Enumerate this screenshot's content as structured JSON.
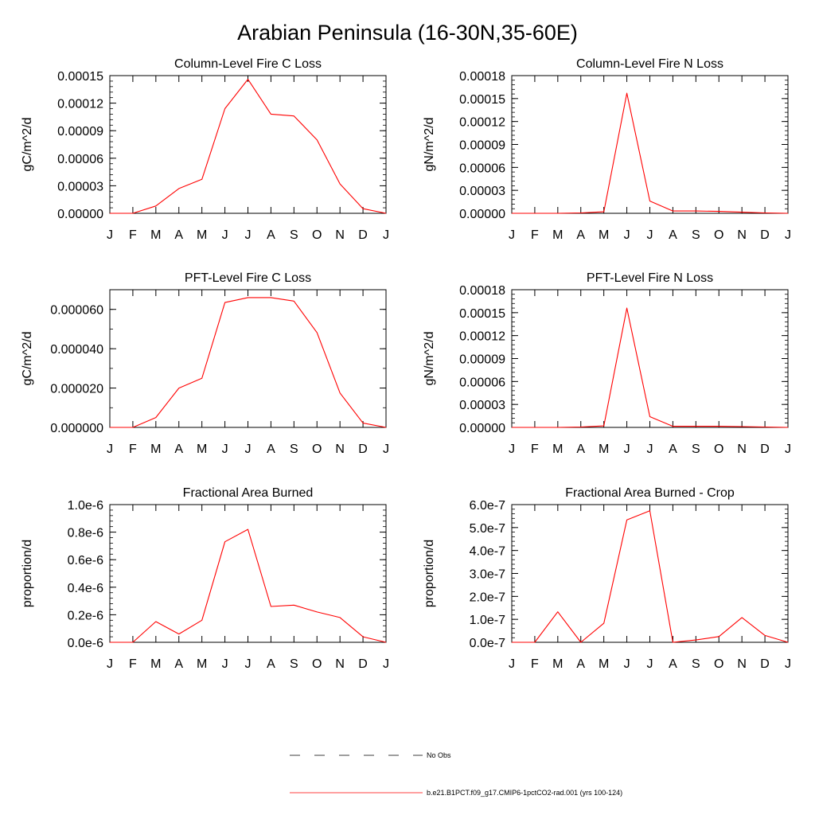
{
  "figure_title": "Arabian Peninsula (16-30N,35-60E)",
  "colors": {
    "model_line": "#ff0000",
    "axes": "#000000",
    "obs_line": "#000000"
  },
  "legend": [
    {
      "label": "No Obs",
      "style": "dashed",
      "color": "#000000"
    },
    {
      "label": "b.e21.B1PCT.f09_g17.CMIP6-1pctCO2-rad.001 (yrs 100-124)",
      "style": "solid",
      "color": "#ff0000"
    }
  ],
  "chart_data": [
    {
      "type": "line",
      "title": "Column-Level Fire C Loss",
      "xlabel": "",
      "ylabel": "gC/m^2/d",
      "categories": [
        "J",
        "F",
        "M",
        "A",
        "M",
        "J",
        "J",
        "A",
        "S",
        "O",
        "N",
        "D",
        "J"
      ],
      "ylim": [
        0,
        0.00015
      ],
      "yticks": [
        "0.00000",
        "0.00003",
        "0.00006",
        "0.00009",
        "0.00012",
        "0.00015"
      ],
      "series": [
        {
          "values": [
            0.0,
            0.0,
            8e-06,
            2.7e-05,
            3.7e-05,
            0.000114,
            0.000146,
            0.000108,
            0.000106,
            8e-05,
            3.2e-05,
            5e-06,
            0.0
          ]
        }
      ]
    },
    {
      "type": "line",
      "title": "Column-Level Fire N Loss",
      "xlabel": "",
      "ylabel": "gN/m^2/d",
      "categories": [
        "J",
        "F",
        "M",
        "A",
        "M",
        "J",
        "J",
        "A",
        "S",
        "O",
        "N",
        "D",
        "J"
      ],
      "ylim": [
        0,
        0.00018
      ],
      "yticks": [
        "0.00000",
        "0.00003",
        "0.00006",
        "0.00009",
        "0.00012",
        "0.00015",
        "0.00018"
      ],
      "series": [
        {
          "values": [
            0.0,
            0.0,
            0.0,
            5e-07,
            2e-06,
            0.000157,
            1.6e-05,
            3e-06,
            3e-06,
            2.5e-06,
            1.5e-06,
            5e-07,
            0.0
          ]
        }
      ]
    },
    {
      "type": "line",
      "title": "PFT-Level Fire C Loss",
      "xlabel": "",
      "ylabel": "gC/m^2/d",
      "categories": [
        "J",
        "F",
        "M",
        "A",
        "M",
        "J",
        "J",
        "A",
        "S",
        "O",
        "N",
        "D",
        "J"
      ],
      "ylim": [
        0,
        7e-05
      ],
      "yticks": [
        "0.000000",
        "0.000020",
        "0.000040",
        "0.000060"
      ],
      "ytick_values": [
        0,
        2e-05,
        4e-05,
        6e-05
      ],
      "series": [
        {
          "values": [
            0.0,
            0.0,
            5e-06,
            2e-05,
            2.5e-05,
            6.35e-05,
            6.6e-05,
            6.6e-05,
            6.42e-05,
            4.82e-05,
            1.75e-05,
            2.2e-06,
            0.0
          ]
        }
      ]
    },
    {
      "type": "line",
      "title": "PFT-Level Fire N Loss",
      "xlabel": "",
      "ylabel": "gN/m^2/d",
      "categories": [
        "J",
        "F",
        "M",
        "A",
        "M",
        "J",
        "J",
        "A",
        "S",
        "O",
        "N",
        "D",
        "J"
      ],
      "ylim": [
        0,
        0.00018
      ],
      "yticks": [
        "0.00000",
        "0.00003",
        "0.00006",
        "0.00009",
        "0.00012",
        "0.00015",
        "0.00018"
      ],
      "series": [
        {
          "values": [
            0.0,
            0.0,
            0.0,
            5e-07,
            2e-06,
            0.000156,
            1.4e-05,
            1.5e-06,
            1.5e-06,
            1.5e-06,
            1e-06,
            5e-07,
            0.0
          ]
        }
      ]
    },
    {
      "type": "line",
      "title": "Fractional Area Burned",
      "xlabel": "",
      "ylabel": "proportion/d",
      "categories": [
        "J",
        "F",
        "M",
        "A",
        "M",
        "J",
        "J",
        "A",
        "S",
        "O",
        "N",
        "D",
        "J"
      ],
      "ylim": [
        0,
        1e-06
      ],
      "yticks": [
        "0.0e-6",
        "0.2e-6",
        "0.4e-6",
        "0.6e-6",
        "0.8e-6",
        "1.0e-6"
      ],
      "series": [
        {
          "values": [
            0.0,
            0.0,
            1.5e-07,
            6e-08,
            1.6e-07,
            7.3e-07,
            8.2e-07,
            2.6e-07,
            2.7e-07,
            2.2e-07,
            1.8e-07,
            4e-08,
            0.0
          ]
        }
      ]
    },
    {
      "type": "line",
      "title": "Fractional Area Burned - Crop",
      "xlabel": "",
      "ylabel": "proportion/d",
      "categories": [
        "J",
        "F",
        "M",
        "A",
        "M",
        "J",
        "J",
        "A",
        "S",
        "O",
        "N",
        "D",
        "J"
      ],
      "ylim": [
        0,
        6e-07
      ],
      "yticks": [
        "0.0e-7",
        "1.0e-7",
        "2.0e-7",
        "3.0e-7",
        "4.0e-7",
        "5.0e-7",
        "6.0e-7"
      ],
      "series": [
        {
          "values": [
            0.0,
            0.0,
            1.33e-07,
            0.0,
            8.3e-08,
            5.33e-07,
            5.73e-07,
            0.0,
            1e-08,
            2.5e-08,
            1.08e-07,
            3e-08,
            0.0
          ]
        }
      ]
    }
  ]
}
